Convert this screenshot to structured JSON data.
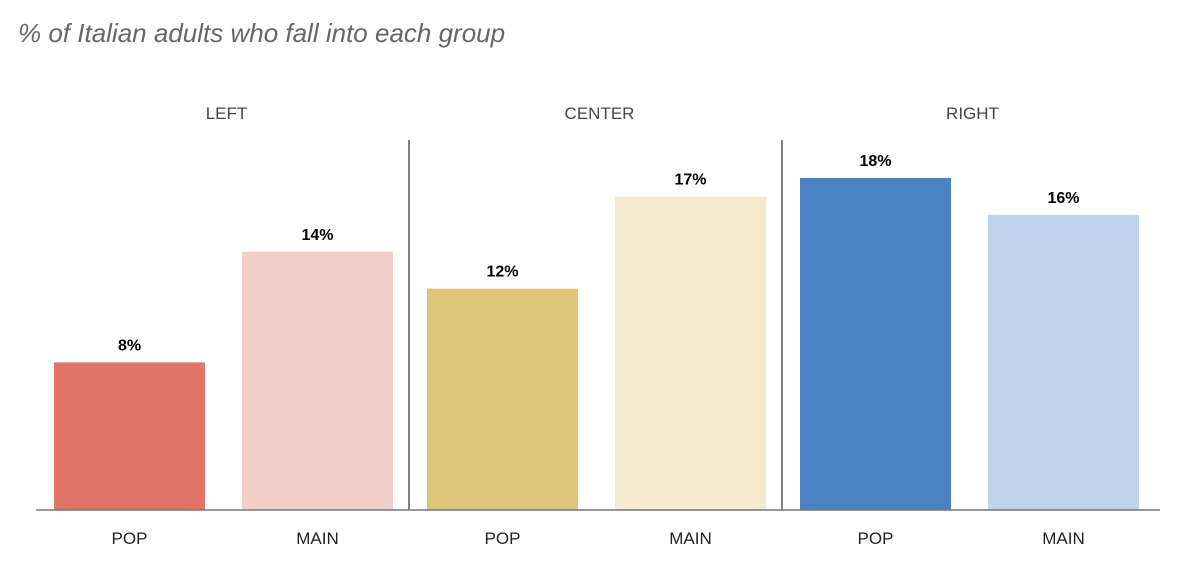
{
  "chart_data": {
    "type": "bar",
    "title": "% of Italian adults who fall into each group",
    "groups": [
      {
        "label": "LEFT",
        "bars": [
          {
            "category": "POP",
            "value": 8,
            "label": "8%",
            "color": "#e07568"
          },
          {
            "category": "MAIN",
            "value": 14,
            "label": "14%",
            "color": "#f3cdc8"
          }
        ]
      },
      {
        "label": "CENTER",
        "bars": [
          {
            "category": "POP",
            "value": 12,
            "label": "12%",
            "color": "#dfc47a"
          },
          {
            "category": "MAIN",
            "value": 17,
            "label": "17%",
            "color": "#f5ead0"
          }
        ]
      },
      {
        "label": "RIGHT",
        "bars": [
          {
            "category": "POP",
            "value": 18,
            "label": "18%",
            "color": "#4a82c3"
          },
          {
            "category": "MAIN",
            "value": 16,
            "label": "16%",
            "color": "#bfd3ea"
          }
        ]
      }
    ],
    "ylim": [
      0,
      18
    ],
    "grid": false,
    "axis_color": "#777777",
    "divider_color": "#555555"
  }
}
